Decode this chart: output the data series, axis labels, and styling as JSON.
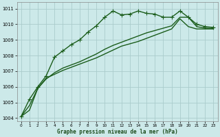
{
  "title": "",
  "xlabel": "Graphe pression niveau de la mer (hPa)",
  "background_color": "#cce9e9",
  "grid_color": "#aacccc",
  "line_color": "#1a5c1a",
  "xlim": [
    -0.5,
    23.5
  ],
  "ylim": [
    1003.8,
    1011.4
  ],
  "yticks": [
    1004,
    1005,
    1006,
    1007,
    1008,
    1009,
    1010,
    1011
  ],
  "xticks": [
    0,
    1,
    2,
    3,
    4,
    5,
    6,
    7,
    8,
    9,
    10,
    11,
    12,
    13,
    14,
    15,
    16,
    17,
    18,
    19,
    20,
    21,
    22,
    23
  ],
  "line1_x": [
    0,
    1,
    2,
    3,
    4,
    5,
    6,
    7,
    8,
    9,
    10,
    11,
    12,
    13,
    14,
    15,
    16,
    17,
    18,
    19,
    20,
    21,
    22,
    23
  ],
  "line1_y": [
    1004.1,
    1005.2,
    1006.0,
    1006.7,
    1007.9,
    1008.3,
    1008.7,
    1009.0,
    1009.5,
    1009.9,
    1010.45,
    1010.85,
    1010.6,
    1010.65,
    1010.85,
    1010.7,
    1010.65,
    1010.45,
    1010.45,
    1010.85,
    1010.45,
    1010.0,
    1009.85,
    1009.8
  ],
  "line2_x": [
    0,
    1,
    2,
    3,
    4,
    5,
    6,
    7,
    8,
    9,
    10,
    11,
    12,
    13,
    14,
    15,
    16,
    17,
    18,
    19,
    20,
    21,
    22,
    23
  ],
  "line2_y": [
    1004.1,
    1004.8,
    1005.9,
    1006.5,
    1006.9,
    1007.2,
    1007.4,
    1007.6,
    1007.85,
    1008.1,
    1008.4,
    1008.65,
    1008.85,
    1009.05,
    1009.25,
    1009.45,
    1009.6,
    1009.75,
    1009.9,
    1010.45,
    1010.45,
    1009.85,
    1009.75,
    1009.75
  ],
  "line3_x": [
    0,
    1,
    2,
    3,
    4,
    5,
    6,
    7,
    8,
    9,
    10,
    11,
    12,
    13,
    14,
    15,
    16,
    17,
    18,
    19,
    20,
    21,
    22,
    23
  ],
  "line3_y": [
    1004.1,
    1004.5,
    1005.9,
    1006.55,
    1006.8,
    1007.05,
    1007.25,
    1007.45,
    1007.65,
    1007.85,
    1008.1,
    1008.35,
    1008.6,
    1008.75,
    1008.9,
    1009.1,
    1009.3,
    1009.5,
    1009.7,
    1010.35,
    1009.85,
    1009.7,
    1009.7,
    1009.7
  ],
  "marker": "+",
  "marker_size": 4,
  "linewidth": 1.0
}
